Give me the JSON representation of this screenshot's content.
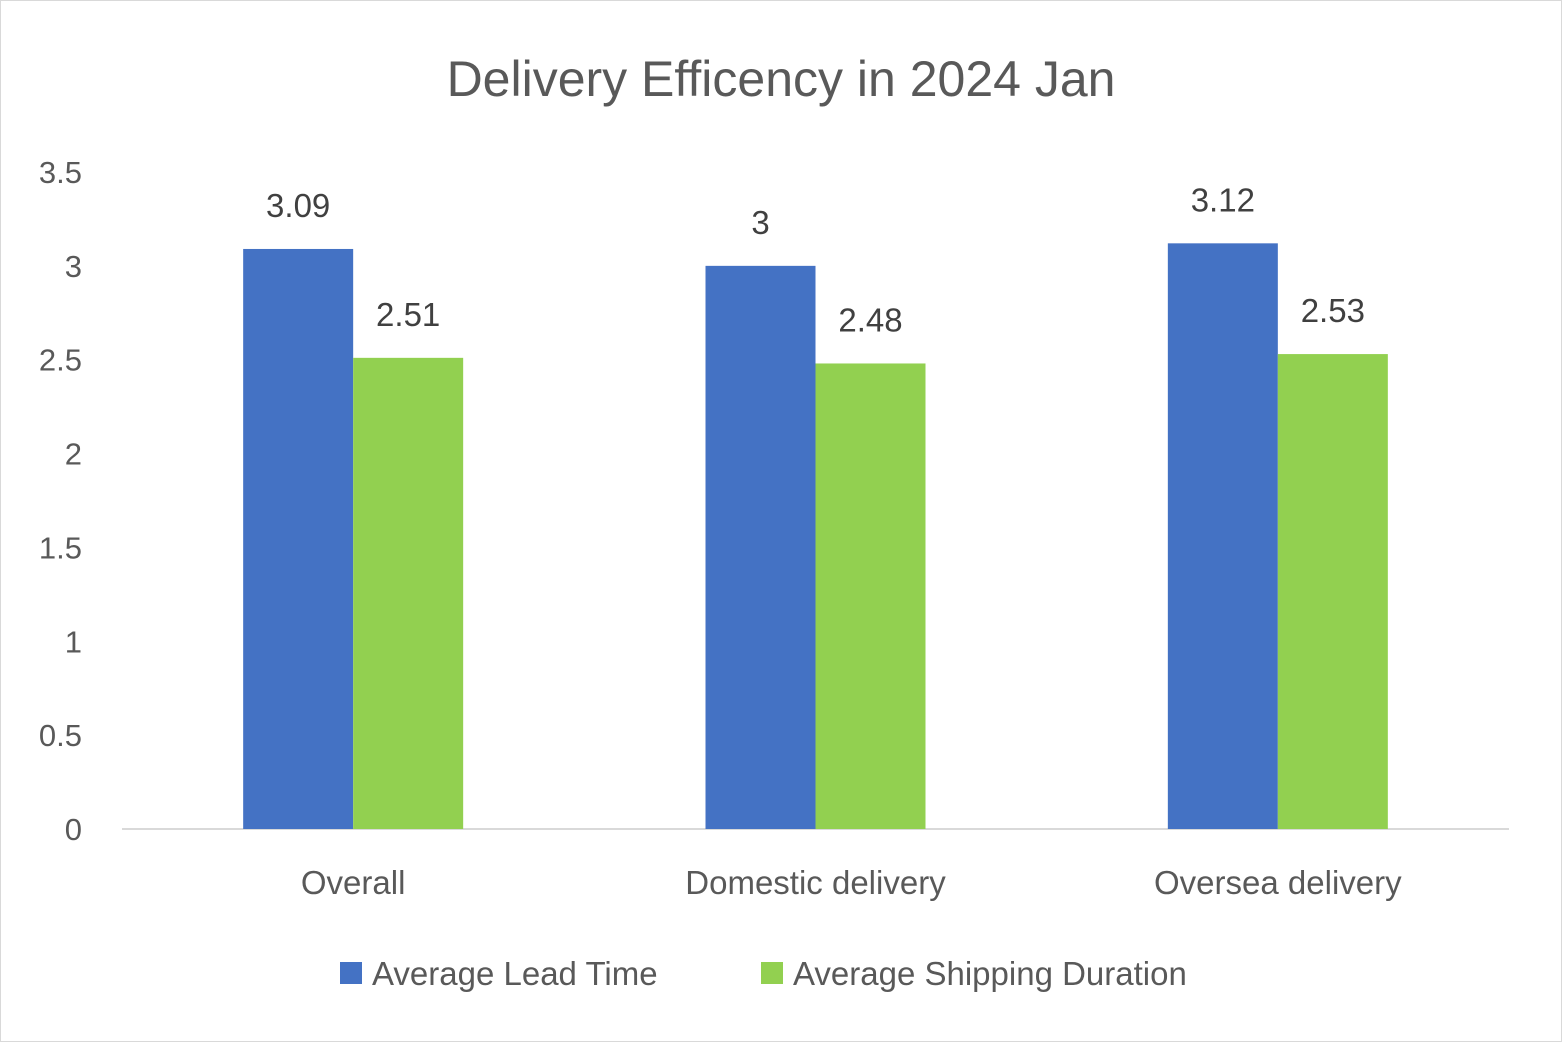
{
  "chart_data": {
    "type": "bar",
    "title": "Delivery Efficency in 2024 Jan",
    "categories": [
      "Overall",
      "Domestic delivery",
      "Oversea delivery"
    ],
    "series": [
      {
        "name": "Average Lead Time",
        "values": [
          3.09,
          3,
          3.12
        ],
        "labels": [
          "3.09",
          "3",
          "3.12"
        ],
        "color": "#4472C4"
      },
      {
        "name": "Average Shipping Duration",
        "values": [
          2.51,
          2.48,
          2.53
        ],
        "labels": [
          "2.51",
          "2.48",
          "2.53"
        ],
        "color": "#92D050"
      }
    ],
    "ylim": [
      0,
      3.5
    ],
    "yticks": [
      "0",
      "0.5",
      "1",
      "1.5",
      "2",
      "2.5",
      "3",
      "3.5"
    ],
    "grid": false,
    "legend_position": "bottom"
  }
}
